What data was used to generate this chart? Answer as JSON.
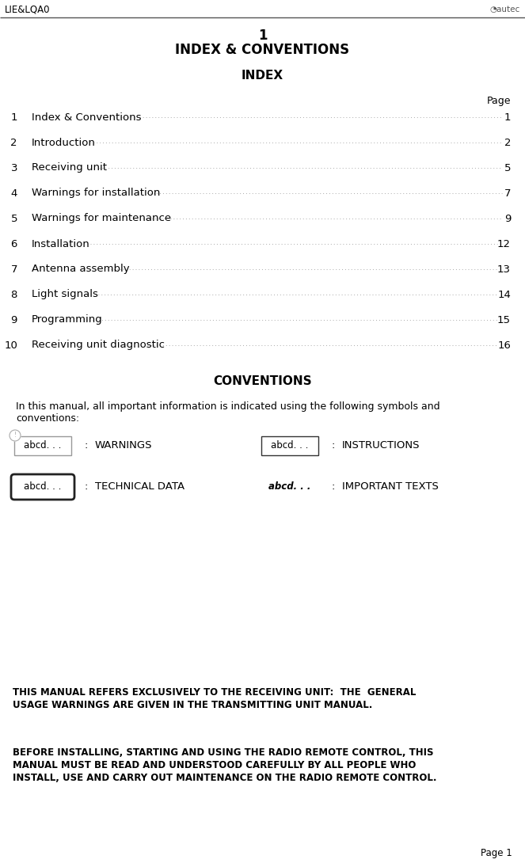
{
  "bg_color": "#ffffff",
  "header_text": "LIE&LQA0",
  "page_number": "Page 1",
  "title_number": "1",
  "title_main": "INDEX & CONVENTIONS",
  "title_index": "INDEX",
  "title_conventions": "CONVENTIONS",
  "page_label": "Page",
  "index_entries": [
    {
      "num": "1",
      "text": "Index & Conventions",
      "page": "1"
    },
    {
      "num": "2",
      "text": "Introduction",
      "page": "2"
    },
    {
      "num": "3",
      "text": "Receiving unit",
      "page": "5"
    },
    {
      "num": "4",
      "text": "Warnings for installation",
      "page": "7"
    },
    {
      "num": "5",
      "text": "Warnings for maintenance",
      "page": "9"
    },
    {
      "num": "6",
      "text": "Installation",
      "page": "12"
    },
    {
      "num": "7",
      "text": "Antenna assembly",
      "page": "13"
    },
    {
      "num": "8",
      "text": "Light signals",
      "page": "14"
    },
    {
      "num": "9",
      "text": "Programming",
      "page": "15"
    },
    {
      "num": "10",
      "text": "Receiving unit diagnostic",
      "page": "16"
    }
  ],
  "conventions_intro_line1": "In this manual, all important information is indicated using the following symbols and",
  "conventions_intro_line2": "conventions:",
  "warning_text1_line1": "THIS MANUAL REFERS EXCLUSIVELY TO THE RECEIVING UNIT:  THE  GENERAL",
  "warning_text1_line2": "USAGE WARNINGS ARE GIVEN IN THE TRANSMITTING UNIT MANUAL.",
  "warning_text2_line1": "BEFORE INSTALLING, STARTING AND USING THE RADIO REMOTE CONTROL, THIS",
  "warning_text2_line2": "MANUAL MUST BE READ AND UNDERSTOOD CAREFULLY BY ALL PEOPLE WHO",
  "warning_text2_line3": "INSTALL, USE AND CARRY OUT MAINTENANCE ON THE RADIO REMOTE CONTROL.",
  "header_line_color": "#555555",
  "text_color": "#000000",
  "dot_line_color": "#aaaaaa",
  "logo_color": "#444444"
}
